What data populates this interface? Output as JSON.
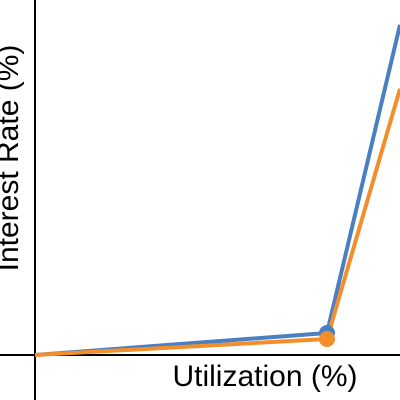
{
  "chart_data": {
    "type": "line",
    "x_label": "Utilization (%)",
    "y_label": "Interest Rate (%)",
    "x": [
      0,
      80,
      100
    ],
    "xlim": [
      0,
      100
    ],
    "ylim": [
      0,
      100
    ],
    "series": [
      {
        "color": "#4a7fc1",
        "values": [
          0,
          6.2,
          93
        ]
      },
      {
        "color": "#f28e2b",
        "values": [
          0,
          4.5,
          75
        ]
      }
    ],
    "marker_index": 1
  }
}
